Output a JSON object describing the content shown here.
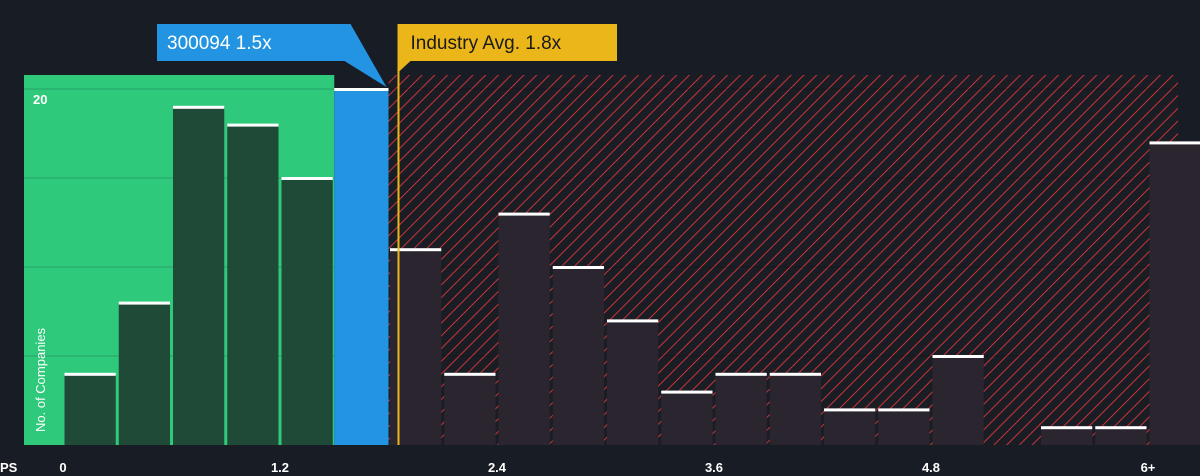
{
  "chart_data": {
    "type": "bar",
    "xlabel": "PS",
    "ylabel": "No. of Companies",
    "x_ticks": [
      "0",
      "1.2",
      "2.4",
      "3.6",
      "4.8",
      "6+"
    ],
    "y_ticks": [
      "20"
    ],
    "ylim": [
      0,
      22
    ],
    "xlim": [
      -0.15,
      6.15
    ],
    "bin_width": 0.3,
    "bins_start": [
      0,
      0.3,
      0.6,
      0.9,
      1.2,
      1.5,
      1.8,
      2.1,
      2.4,
      2.7,
      3.0,
      3.3,
      3.6,
      3.9,
      4.2,
      4.5,
      4.8,
      5.1,
      5.4,
      5.7,
      6.0
    ],
    "values": [
      4,
      8,
      19,
      18,
      15,
      20,
      11,
      4,
      13,
      10,
      7,
      3,
      4,
      4,
      2,
      2,
      5,
      0,
      1,
      1,
      17
    ],
    "highlight_bin_index": 5,
    "company": {
      "label": "300094 1.5x",
      "value": 1.5,
      "color": "#2394e2"
    },
    "industry": {
      "label": "Industry Avg. 1.8x",
      "value": 1.8,
      "color": "#eab61a"
    },
    "colors": {
      "fair_zone": "#2fc97b",
      "expensive_zone": "#e0393e",
      "bar_fill": "#1f4a37",
      "bar_fill_expensive": "#2b2530",
      "bar_top": "#ffffff",
      "background": "#181c24"
    },
    "grid": true
  }
}
